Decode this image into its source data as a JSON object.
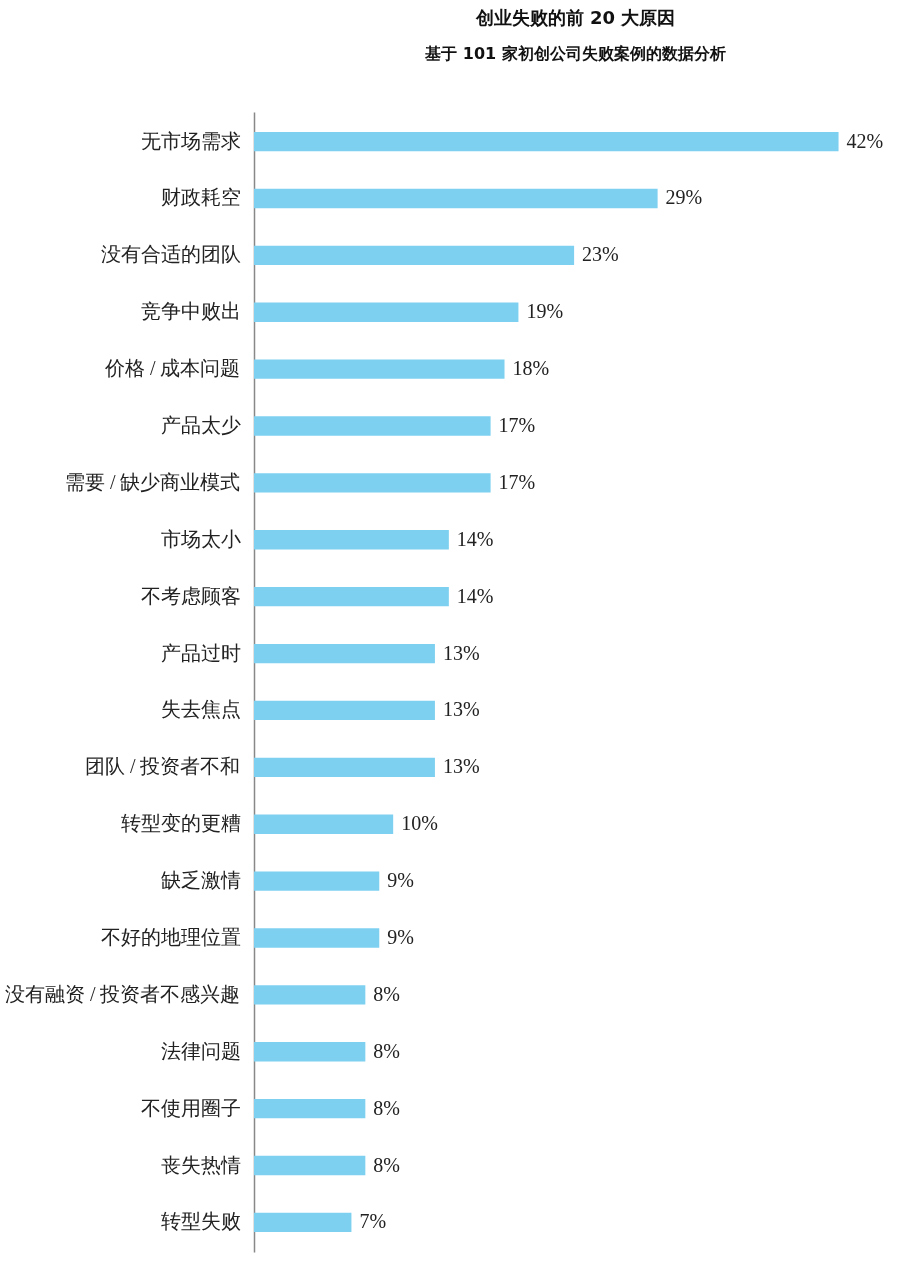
{
  "chart_data": {
    "type": "bar",
    "orientation": "horizontal",
    "title": "创业失败的前 20 大原因",
    "subtitle": "基于 101 家初创公司失败案例的数据分析",
    "categories": [
      "无市场需求",
      "财政耗空",
      "没有合适的团队",
      "竞争中败出",
      "价格 / 成本问题",
      "产品太少",
      "需要 / 缺少商业模式",
      "市场太小",
      "不考虑顾客",
      "产品过时",
      "失去焦点",
      "团队 / 投资者不和",
      "转型变的更糟",
      "缺乏激情",
      "不好的地理位置",
      "没有融资 / 投资者不感兴趣",
      "法律问题",
      "不使用圈子",
      "丧失热情",
      "转型失败"
    ],
    "values": [
      42,
      29,
      23,
      19,
      18,
      17,
      17,
      14,
      14,
      13,
      13,
      13,
      10,
      9,
      9,
      8,
      8,
      8,
      8,
      7
    ],
    "value_labels": [
      "42%",
      "29%",
      "23%",
      "19%",
      "18%",
      "17%",
      "17%",
      "14%",
      "14%",
      "13%",
      "13%",
      "13%",
      "10%",
      "9%",
      "9%",
      "8%",
      "8%",
      "8%",
      "8%",
      "7%"
    ],
    "color": "#7dd0f0",
    "tick_labels": "y",
    "grid": false
  }
}
